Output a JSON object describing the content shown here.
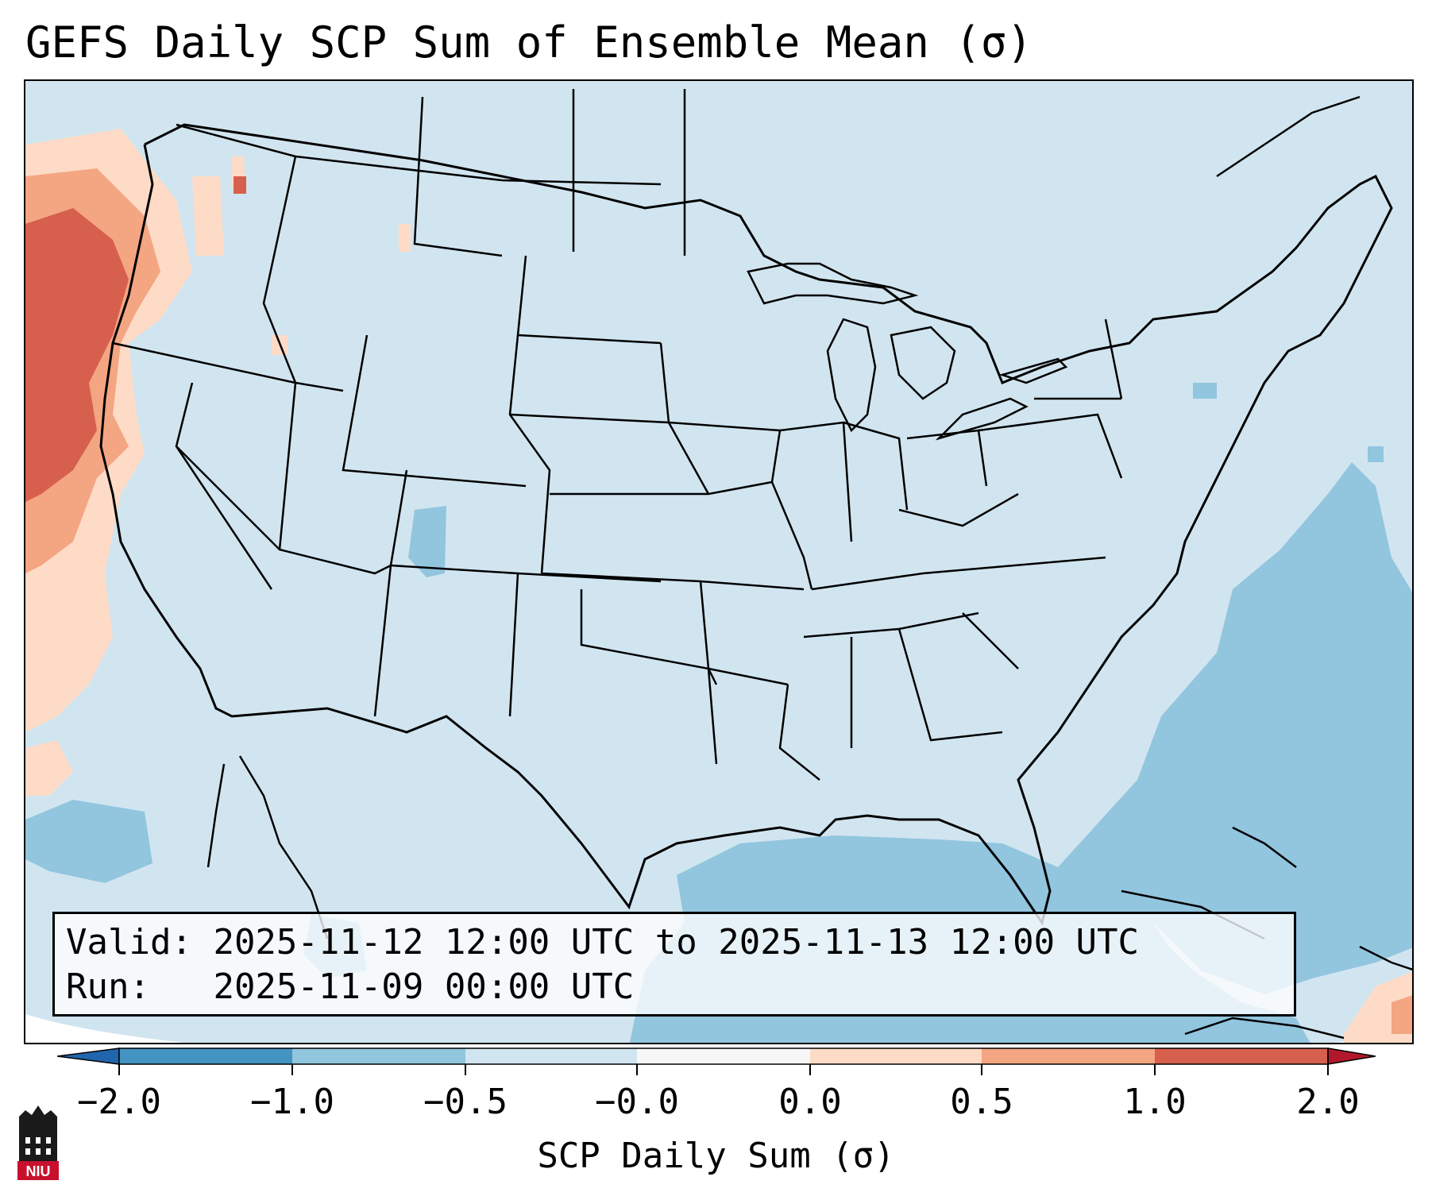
{
  "title": "GEFS Daily SCP Sum of Ensemble Mean (σ)",
  "info": {
    "valid_label": "Valid:",
    "valid_value": "2025-11-12 12:00 UTC to 2025-11-13 12:00 UTC",
    "run_label": "Run:",
    "run_value": "2025-11-09 00:00 UTC"
  },
  "colorbar": {
    "label": "SCP Daily Sum (σ)",
    "ticks": [
      "−2.0",
      "−1.0",
      "−0.5",
      "−0.0",
      "0.0",
      "0.5",
      "1.0",
      "2.0"
    ],
    "colors": {
      "under": "#2166ac",
      "bin_neg2_neg1": "#4393c3",
      "bin_neg1_neg05": "#92c5de",
      "bin_neg05_0": "#d1e5f0",
      "bin_0_0": "#f7f7f7",
      "bin_0_05": "#fddbc7",
      "bin_05_1": "#f4a582",
      "bin_1_2": "#d6604d",
      "over": "#b2182b"
    }
  },
  "logo": {
    "text": "NIU",
    "color": "#c8102e"
  }
}
